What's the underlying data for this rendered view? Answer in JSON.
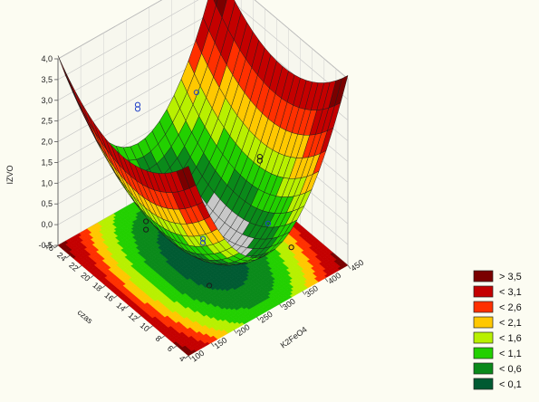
{
  "chart_data": {
    "type": "surface3d",
    "title": "",
    "z_axis": {
      "label": "IZVO",
      "ticks": [
        "-0,5",
        "0,0",
        "0,5",
        "1,0",
        "1,5",
        "2,0",
        "2,5",
        "3,0",
        "3,5",
        "4,0"
      ],
      "range": [
        -0.5,
        4.0
      ]
    },
    "x_axis": {
      "label": "K2FeO4",
      "ticks": [
        "100",
        "150",
        "200",
        "250",
        "300",
        "350",
        "400",
        "450"
      ],
      "range": [
        100,
        450
      ]
    },
    "y_axis": {
      "label": "czas",
      "ticks": [
        "4",
        "6",
        "8",
        "10",
        "12",
        "14",
        "16",
        "18",
        "20",
        "22",
        "24",
        "26"
      ],
      "range": [
        4,
        26
      ]
    },
    "surface_model": {
      "minimum": -0.25,
      "center_x": 275,
      "center_y": 15,
      "coef_x": 0.000105,
      "coef_y": 0.0092
    },
    "observed_points": [
      {
        "x": 150,
        "y": 15,
        "z": 0.9
      },
      {
        "x": 150,
        "y": 15,
        "z": 1.1
      },
      {
        "x": 275,
        "y": 4,
        "z": 1.6
      },
      {
        "x": 275,
        "y": 26,
        "z": 1.7
      },
      {
        "x": 275,
        "y": 26,
        "z": 1.8
      },
      {
        "x": 275,
        "y": 15,
        "z": -0.2
      },
      {
        "x": 275,
        "y": 15,
        "z": -0.1
      },
      {
        "x": 400,
        "y": 15,
        "z": 1.1
      },
      {
        "x": 400,
        "y": 15,
        "z": 1.0
      },
      {
        "x": 185,
        "y": 7,
        "z": 0.3
      },
      {
        "x": 365,
        "y": 23,
        "z": 1.9
      },
      {
        "x": 365,
        "y": 7,
        "z": 0.1
      }
    ],
    "legend": {
      "placement": "bottom-right",
      "entries": [
        {
          "label": "> 3,5",
          "color": "#7a0000"
        },
        {
          "label": "< 3,1",
          "color": "#c40000"
        },
        {
          "label": "< 2,6",
          "color": "#ff3000"
        },
        {
          "label": "< 2,1",
          "color": "#ffc800"
        },
        {
          "label": "< 1,6",
          "color": "#b8f000"
        },
        {
          "label": "< 1,1",
          "color": "#22d000"
        },
        {
          "label": "< 0,6",
          "color": "#0a8a1a"
        },
        {
          "label": "< 0,1",
          "color": "#005a32"
        }
      ]
    }
  }
}
